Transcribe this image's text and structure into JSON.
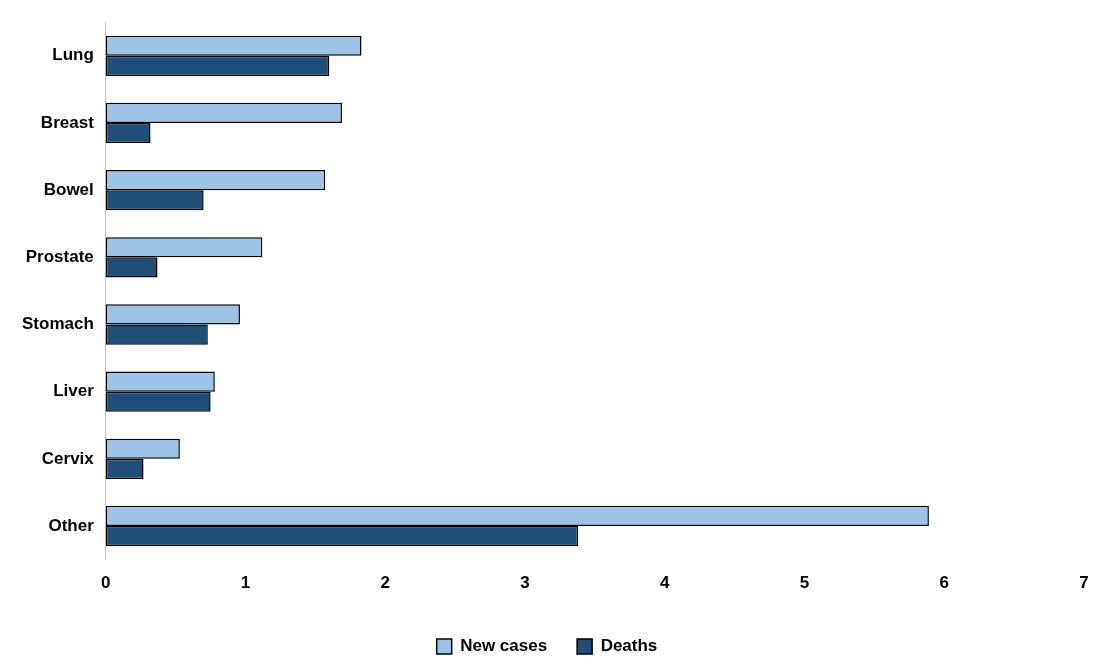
{
  "chart_data": {
    "type": "bar",
    "orientation": "horizontal",
    "categories": [
      "Lung",
      "Breast",
      "Bowel",
      "Prostate",
      "Stomach",
      "Liver",
      "Cervix",
      "Other"
    ],
    "series": [
      {
        "name": "New cases",
        "color": "#9dc3e6",
        "values": [
          1.83,
          1.69,
          1.57,
          1.12,
          0.96,
          0.78,
          0.53,
          5.89
        ]
      },
      {
        "name": "Deaths",
        "color": "#1f4e79",
        "values": [
          1.6,
          0.32,
          0.7,
          0.37,
          0.73,
          0.75,
          0.27,
          3.38
        ]
      }
    ],
    "xlim": [
      0,
      7
    ],
    "xticks": [
      0,
      1,
      2,
      3,
      4,
      5,
      6,
      7
    ],
    "grid": false,
    "legend": "bottom"
  }
}
